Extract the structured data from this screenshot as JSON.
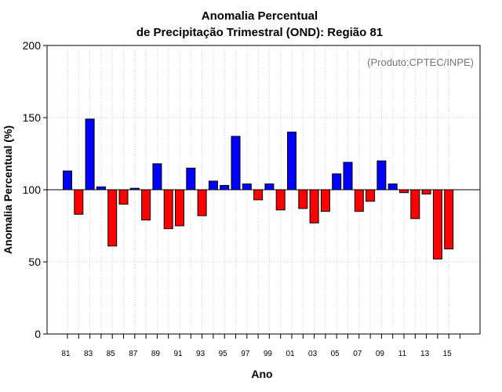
{
  "chart_data": {
    "type": "bar",
    "title_line1": "Anomalia Percentual",
    "title_line2": "de Precipitação Trimestral (OND): Região 81",
    "xlabel": "Ano",
    "ylabel": "Anomalia Percentual (%)",
    "annotation": "(Produto:CPTEC/INPE)",
    "baseline": 100,
    "ylim": [
      0,
      200
    ],
    "yticks": [
      0,
      50,
      100,
      150,
      200
    ],
    "grid": true,
    "categories": [
      "81",
      "82",
      "83",
      "84",
      "85",
      "86",
      "87",
      "88",
      "89",
      "90",
      "91",
      "92",
      "93",
      "94",
      "95",
      "96",
      "97",
      "98",
      "99",
      "00",
      "01",
      "02",
      "03",
      "04",
      "05",
      "06",
      "07",
      "08",
      "09",
      "10",
      "11",
      "12",
      "13",
      "14",
      "15"
    ],
    "xtick_labels": [
      "81",
      "83",
      "85",
      "87",
      "89",
      "91",
      "93",
      "95",
      "97",
      "99",
      "01",
      "03",
      "05",
      "07",
      "09",
      "11",
      "13",
      "15"
    ],
    "values": [
      113,
      83,
      149,
      102,
      61,
      90,
      101,
      79,
      118,
      73,
      75,
      115,
      82,
      106,
      103,
      137,
      104,
      93,
      104,
      86,
      140,
      87,
      77,
      85,
      111,
      119,
      85,
      92,
      120,
      104,
      98,
      80,
      97,
      52,
      59
    ],
    "colors": {
      "above": "#0000ff",
      "below": "#ff0000",
      "outline": "#000000",
      "grid": "#c8c8c8"
    }
  }
}
